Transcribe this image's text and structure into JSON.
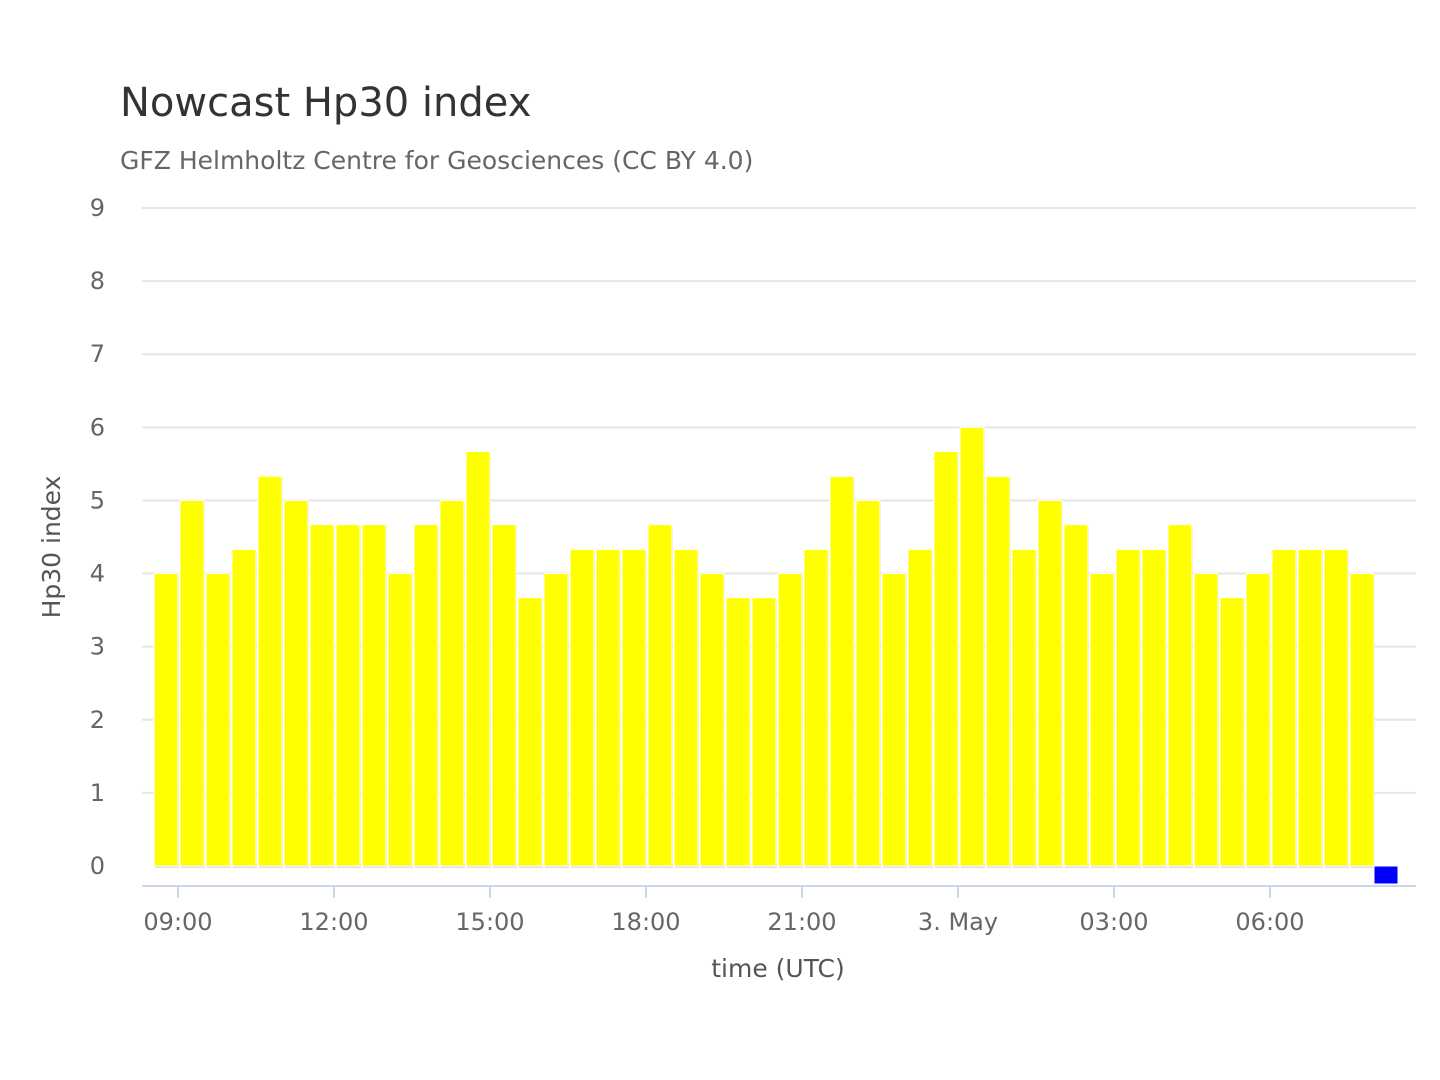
{
  "chart_data": {
    "type": "bar",
    "title": "Nowcast Hp30 index",
    "subtitle": "GFZ Helmholtz Centre for Geosciences (CC BY 4.0)",
    "xlabel": "time (UTC)",
    "ylabel": "Hp30 index",
    "ylim": [
      0,
      9
    ],
    "yticks": [
      0,
      1,
      2,
      3,
      4,
      5,
      6,
      7,
      8,
      9
    ],
    "xticks": [
      "09:00",
      "12:00",
      "15:00",
      "18:00",
      "21:00",
      "3. May",
      "03:00",
      "06:00"
    ],
    "grid": true,
    "legend": false,
    "x_start": "08:30",
    "x_step_minutes": 30,
    "series": [
      {
        "color": "#ffff00",
        "values": [
          4.0,
          5.0,
          4.0,
          4.33,
          5.33,
          5.0,
          4.67,
          4.67,
          4.67,
          4.0,
          4.67,
          5.0,
          5.67,
          4.67,
          3.67,
          4.0,
          4.33,
          4.33,
          4.33,
          4.67,
          4.33,
          4.0,
          3.67,
          3.67,
          4.0,
          4.33,
          5.33,
          5.0,
          4.0,
          4.33,
          5.67,
          6.0,
          5.33,
          4.33,
          5.0,
          4.67,
          4.0,
          4.33,
          4.33,
          4.67,
          4.0,
          3.67,
          4.0,
          4.33,
          4.33,
          4.33,
          4.0
        ]
      },
      {
        "color": "#0000ff",
        "values": [
          0
        ]
      }
    ]
  }
}
